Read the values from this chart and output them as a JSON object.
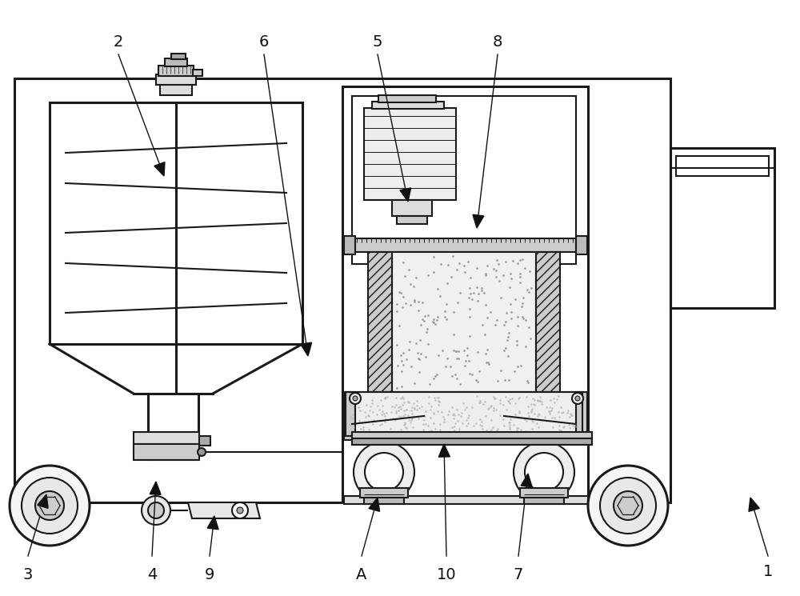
{
  "bg_color": "#ffffff",
  "line_color": "#1a1a1a",
  "lw": 1.5,
  "tlw": 2.2,
  "label_fontsize": 14,
  "labels": [
    [
      "1",
      960,
      715
    ],
    [
      "2",
      148,
      52
    ],
    [
      "3",
      35,
      718
    ],
    [
      "4",
      190,
      718
    ],
    [
      "5",
      472,
      52
    ],
    [
      "6",
      330,
      52
    ],
    [
      "7",
      648,
      718
    ],
    [
      "8",
      622,
      52
    ],
    [
      "9",
      262,
      718
    ],
    [
      "10",
      558,
      718
    ],
    [
      "A",
      452,
      718
    ]
  ],
  "arrows": [
    [
      148,
      68,
      205,
      220
    ],
    [
      330,
      68,
      385,
      445
    ],
    [
      472,
      68,
      510,
      252
    ],
    [
      622,
      68,
      596,
      285
    ],
    [
      35,
      695,
      58,
      618
    ],
    [
      190,
      695,
      195,
      602
    ],
    [
      262,
      695,
      268,
      645
    ],
    [
      452,
      695,
      472,
      622
    ],
    [
      558,
      695,
      555,
      555
    ],
    [
      648,
      695,
      660,
      592
    ],
    [
      960,
      695,
      938,
      622
    ]
  ]
}
